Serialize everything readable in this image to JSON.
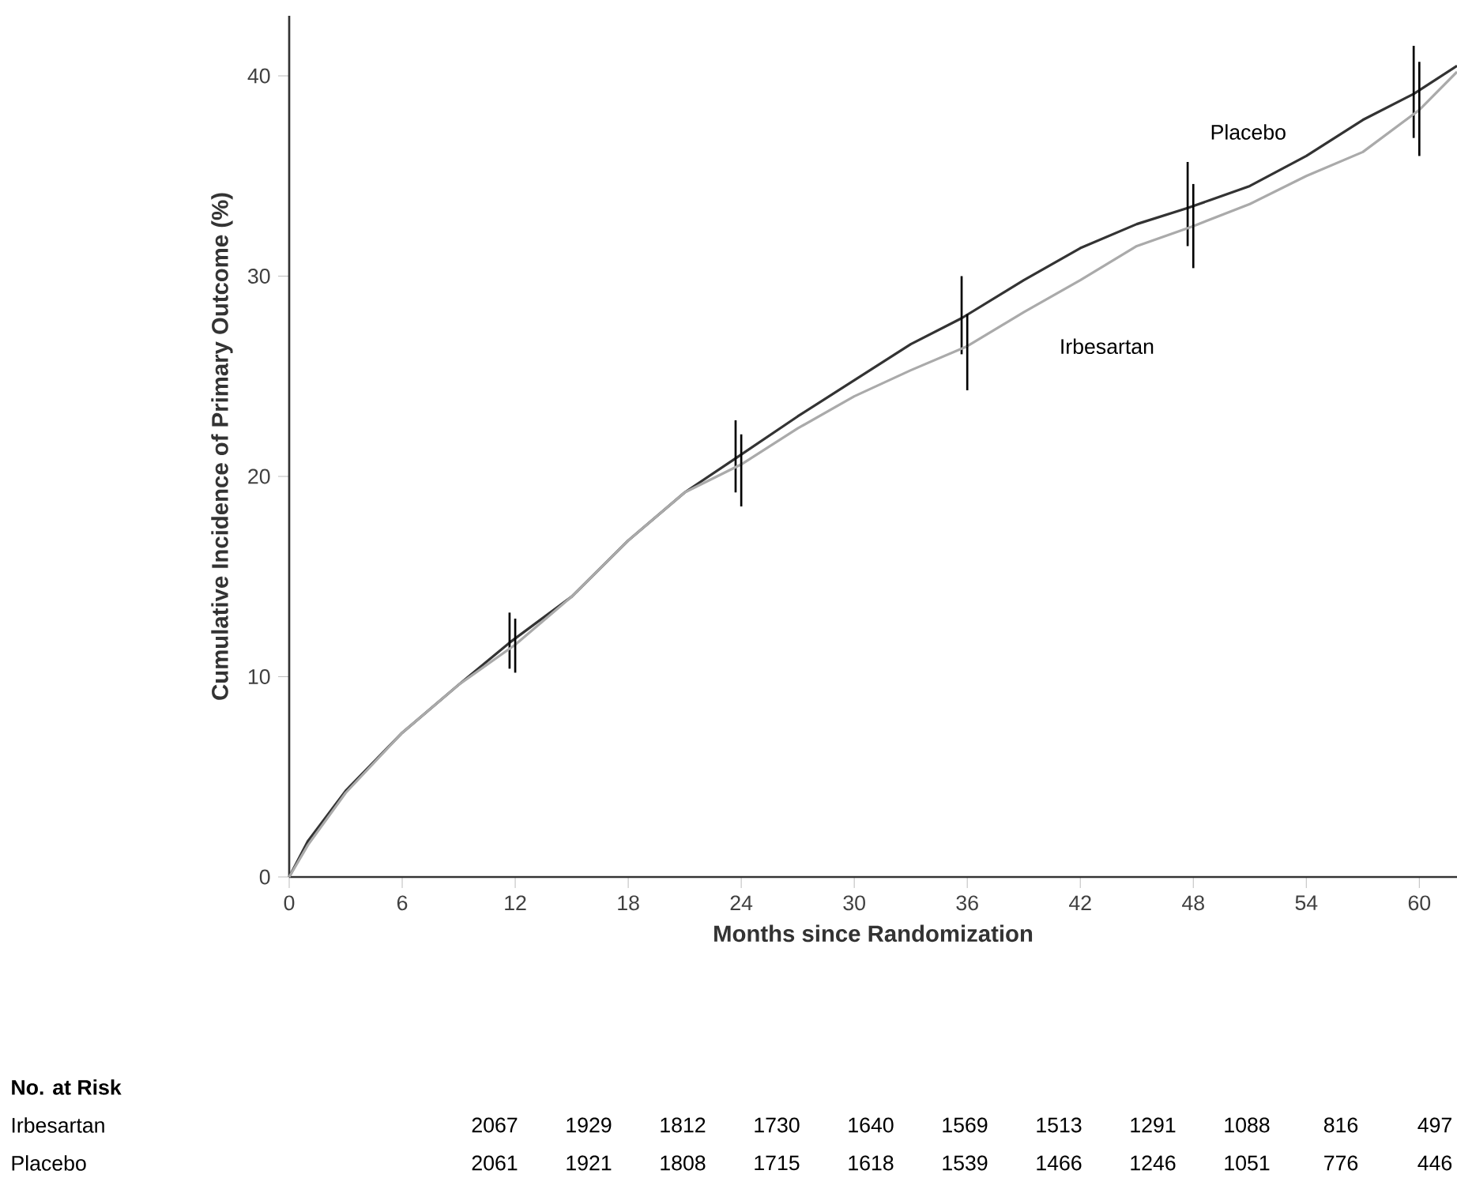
{
  "chart_data": {
    "type": "line",
    "xlabel": "Months since Randomization",
    "ylabel": "Cumulative Incidence of Primary Outcome (%)",
    "xlim": [
      0,
      62
    ],
    "ylim": [
      0,
      43
    ],
    "xticks": [
      0,
      6,
      12,
      18,
      24,
      30,
      36,
      42,
      48,
      54,
      60
    ],
    "yticks": [
      0,
      10,
      20,
      30,
      40
    ],
    "series": [
      {
        "name": "Placebo",
        "color": "#333333",
        "x": [
          0,
          1,
          3,
          6,
          9,
          11.7,
          15,
          18,
          21,
          23.7,
          27,
          30,
          33,
          35.7,
          39,
          42,
          45,
          47.7,
          51,
          54,
          57,
          59.7,
          62
        ],
        "values": [
          0,
          1.8,
          4.3,
          7.2,
          9.6,
          11.7,
          14.0,
          16.8,
          19.2,
          20.9,
          23.0,
          24.8,
          26.6,
          27.9,
          29.8,
          31.4,
          32.6,
          33.4,
          34.5,
          36.0,
          37.8,
          39.1,
          40.5
        ],
        "errors": [
          null,
          null,
          null,
          null,
          null,
          [
            10.4,
            13.2
          ],
          null,
          null,
          null,
          [
            19.2,
            22.8
          ],
          null,
          null,
          null,
          [
            26.1,
            30.0
          ],
          null,
          null,
          null,
          [
            31.5,
            35.7
          ],
          null,
          null,
          null,
          [
            36.9,
            41.5
          ],
          null
        ]
      },
      {
        "name": "Irbesartan",
        "color": "#aaaaaa",
        "x": [
          0,
          1,
          3,
          6,
          9,
          12,
          15,
          18,
          21,
          24,
          27,
          30,
          33,
          36,
          39,
          42,
          45,
          48,
          51,
          54,
          57,
          60,
          62
        ],
        "values": [
          0,
          1.6,
          4.2,
          7.2,
          9.6,
          11.6,
          14.0,
          16.8,
          19.2,
          20.6,
          22.4,
          24.0,
          25.3,
          26.5,
          28.2,
          29.8,
          31.5,
          32.5,
          33.6,
          35.0,
          36.2,
          38.3,
          40.2
        ],
        "errors": [
          null,
          null,
          null,
          null,
          null,
          [
            10.2,
            12.9
          ],
          null,
          null,
          null,
          [
            18.5,
            22.1
          ],
          null,
          null,
          null,
          [
            24.3,
            28.1
          ],
          null,
          null,
          null,
          [
            30.4,
            34.6
          ],
          null,
          null,
          null,
          [
            36.0,
            40.7
          ],
          null
        ]
      }
    ],
    "annotations": [
      "No. at Risk",
      "2067",
      "1929",
      "1812",
      "1730",
      "1640",
      "1569",
      "1513",
      "1291",
      "1088",
      "816",
      "497",
      "2061",
      "1921",
      "1808",
      "1715",
      "1618",
      "1539",
      "1466",
      "1246",
      "1051",
      "776",
      "446"
    ]
  }
}
